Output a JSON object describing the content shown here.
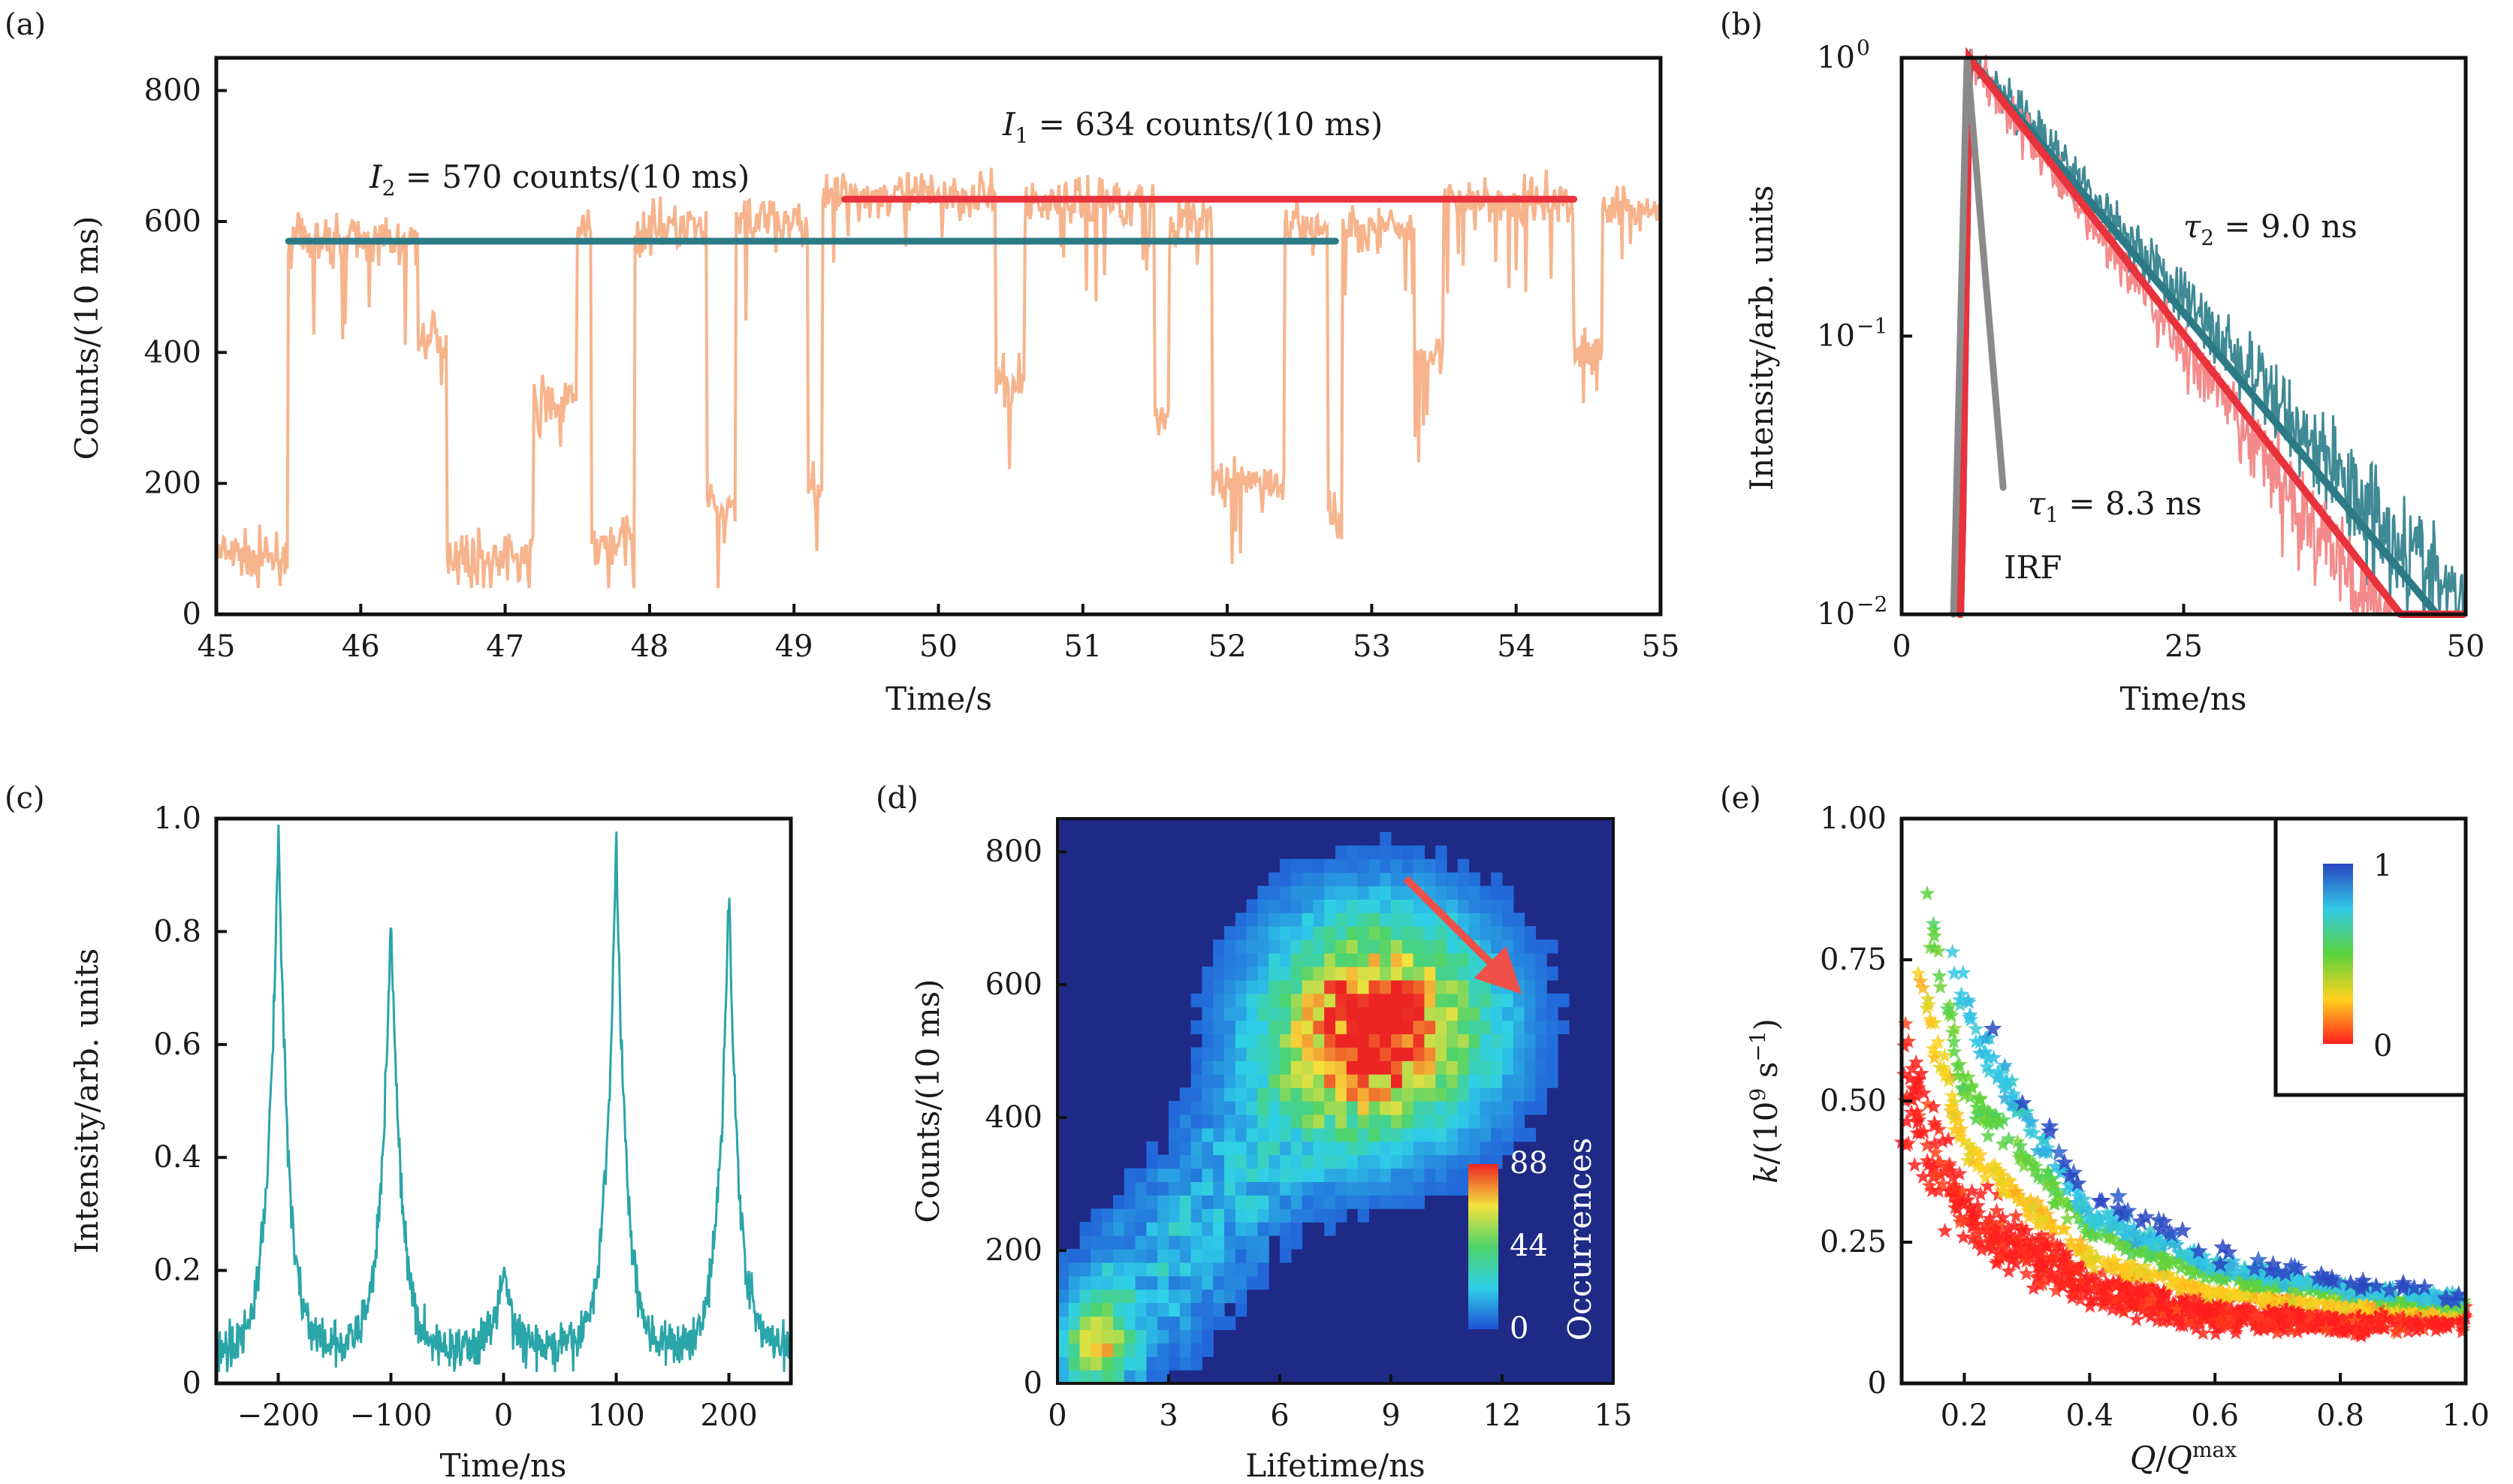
{
  "colors": {
    "trace_a": "#f7b48c",
    "red": "#e8323c",
    "teal": "#2c7a86",
    "teal_c": "#2aa5a8",
    "irf": "#8a8a8a",
    "trace_b_red": "#f58a8a",
    "trace_b_teal": "#3f8a95",
    "heat_bg": "#1e2a86"
  },
  "chart_data": [
    {
      "panel": "(a)",
      "type": "line",
      "xlabel": "Time/s",
      "ylabel": "Counts/(10 ms)",
      "xlim": [
        45,
        55
      ],
      "ylim": [
        0,
        850
      ],
      "xticks": [
        "45",
        "46",
        "47",
        "48",
        "49",
        "50",
        "51",
        "52",
        "53",
        "54",
        "55"
      ],
      "yticks": [
        "0",
        "200",
        "400",
        "600",
        "800"
      ],
      "trace_states": [
        {
          "t": [
            45.0,
            45.5
          ],
          "level": 90
        },
        {
          "t": [
            45.5,
            46.4
          ],
          "level": 570
        },
        {
          "t": [
            46.4,
            46.6
          ],
          "level": 420
        },
        {
          "t": [
            46.6,
            47.2
          ],
          "level": 90
        },
        {
          "t": [
            47.2,
            47.5
          ],
          "level": 320
        },
        {
          "t": [
            47.5,
            47.6
          ],
          "level": 590
        },
        {
          "t": [
            47.6,
            47.9
          ],
          "level": 110
        },
        {
          "t": [
            47.9,
            48.4
          ],
          "level": 590
        },
        {
          "t": [
            48.4,
            48.6
          ],
          "level": 160
        },
        {
          "t": [
            48.6,
            49.1
          ],
          "level": 600
        },
        {
          "t": [
            49.1,
            49.2
          ],
          "level": 200
        },
        {
          "t": [
            49.2,
            50.4
          ],
          "level": 640
        },
        {
          "t": [
            50.4,
            50.6
          ],
          "level": 350
        },
        {
          "t": [
            50.6,
            51.5
          ],
          "level": 630
        },
        {
          "t": [
            51.5,
            51.6
          ],
          "level": 300
        },
        {
          "t": [
            51.6,
            51.9
          ],
          "level": 600
        },
        {
          "t": [
            51.9,
            52.4
          ],
          "level": 200
        },
        {
          "t": [
            52.4,
            52.7
          ],
          "level": 590
        },
        {
          "t": [
            52.7,
            52.8
          ],
          "level": 150
        },
        {
          "t": [
            52.8,
            53.3
          ],
          "level": 590
        },
        {
          "t": [
            53.3,
            53.5
          ],
          "level": 400
        },
        {
          "t": [
            53.5,
            54.4
          ],
          "level": 630
        },
        {
          "t": [
            54.4,
            54.6
          ],
          "level": 400
        },
        {
          "t": [
            54.6,
            55.0
          ],
          "level": 620
        }
      ],
      "lines": [
        {
          "label_var": "I",
          "label_sub": "1",
          "label_value": " = 634 counts/(10 ms)",
          "x": [
            49.35,
            54.4
          ],
          "y": 634,
          "color": "red"
        },
        {
          "label_var": "I",
          "label_sub": "2",
          "label_value": " = 570 counts/(10 ms)",
          "x": [
            45.5,
            52.75
          ],
          "y": 570,
          "color": "teal"
        }
      ]
    },
    {
      "panel": "(b)",
      "type": "line",
      "xlabel": "Time/ns",
      "ylabel": "Intensity/arb. units",
      "xlim": [
        0,
        50
      ],
      "ylim_log10": [
        -2,
        0
      ],
      "xticks": [
        "0",
        "25",
        "50"
      ],
      "yticks": [
        {
          "base": "10",
          "exp": "0"
        },
        {
          "base": "10",
          "exp": "−1"
        },
        {
          "base": "10",
          "exp": "−2"
        }
      ],
      "rise_ns": 5.2,
      "peak_ns": 6.0,
      "series": [
        {
          "name_var": "τ",
          "name_sub": "2",
          "name_value": " = 9.0 ns",
          "tau": 9.0,
          "color": "teal"
        },
        {
          "name_var": "τ",
          "name_sub": "1",
          "name_value": " = 8.3 ns",
          "tau": 8.3,
          "color": "red"
        },
        {
          "name": "IRF",
          "tau": 0.9,
          "color": "irf"
        }
      ]
    },
    {
      "panel": "(c)",
      "type": "line",
      "xlabel": "Time/ns",
      "ylabel": "Intensity/arb. units",
      "xlim": [
        -255,
        255
      ],
      "ylim": [
        0,
        1.0
      ],
      "xticks": [
        "−200",
        "−100",
        "0",
        "100",
        "200"
      ],
      "yticks": [
        "0",
        "0.2",
        "0.4",
        "0.6",
        "0.8",
        "1.0"
      ],
      "peaks": [
        {
          "x": -200,
          "height": 1.0
        },
        {
          "x": -100,
          "height": 0.85
        },
        {
          "x": 0,
          "height": 0.2
        },
        {
          "x": 100,
          "height": 0.97
        },
        {
          "x": 200,
          "height": 0.88
        }
      ],
      "baseline": 0.06
    },
    {
      "panel": "(d)",
      "type": "heatmap",
      "xlabel": "Lifetime/ns",
      "ylabel": "Counts/(10 ms)",
      "xlim": [
        0,
        15
      ],
      "ylim": [
        0,
        850
      ],
      "xticks": [
        "0",
        "3",
        "6",
        "9",
        "12",
        "15"
      ],
      "yticks": [
        "0",
        "200",
        "400",
        "600",
        "800"
      ],
      "colorbar": {
        "label": "Occurrences",
        "ticks": [
          "88",
          "44",
          "0"
        ],
        "max": 88
      },
      "clusters": [
        {
          "lifetime": 8.7,
          "counts": 540,
          "peak": 88,
          "spread_lifetime": 2.0,
          "spread_counts": 110
        },
        {
          "lifetime": 1.1,
          "counts": 70,
          "peak": 50,
          "spread_lifetime": 0.6,
          "spread_counts": 45
        }
      ],
      "arrow": {
        "from": [
          9.4,
          760
        ],
        "to": [
          12.1,
          610
        ]
      }
    },
    {
      "panel": "(e)",
      "type": "scatter",
      "xlabel_var": "Q",
      "xlabel_sep": "/",
      "xlabel_sup": "max",
      "ylabel_var": "k",
      "ylabel_unit_open": "/(10",
      "ylabel_exp": "9",
      "ylabel_unit_mid": " s",
      "ylabel_exp2": "−1",
      "ylabel_unit_close": ")",
      "xlim": [
        0.1,
        1.0
      ],
      "ylim": [
        0,
        1.0
      ],
      "xticks": [
        "0.2",
        "0.4",
        "0.6",
        "0.8",
        "1.0"
      ],
      "yticks": [
        "0",
        "0.25",
        "0.50",
        "0.75",
        "1.00"
      ],
      "colorbar": {
        "ticks": [
          "1",
          "0"
        ]
      },
      "marker": "star",
      "bands": [
        {
          "color_value": 0.0,
          "k_at": [
            [
              0.1,
              0.55
            ],
            [
              0.2,
              0.3
            ],
            [
              0.4,
              0.17
            ],
            [
              0.6,
              0.12
            ],
            [
              0.8,
              0.11
            ],
            [
              1.0,
              0.12
            ]
          ]
        },
        {
          "color_value": 0.25,
          "k_at": [
            [
              0.12,
              0.75
            ],
            [
              0.2,
              0.42
            ],
            [
              0.4,
              0.22
            ],
            [
              0.6,
              0.16
            ],
            [
              0.8,
              0.14
            ],
            [
              1.0,
              0.13
            ]
          ]
        },
        {
          "color_value": 0.5,
          "k_at": [
            [
              0.14,
              0.85
            ],
            [
              0.2,
              0.52
            ],
            [
              0.4,
              0.27
            ],
            [
              0.6,
              0.19
            ],
            [
              0.8,
              0.16
            ],
            [
              1.0,
              0.14
            ]
          ]
        },
        {
          "color_value": 0.75,
          "k_at": [
            [
              0.18,
              0.75
            ],
            [
              0.25,
              0.55
            ],
            [
              0.4,
              0.3
            ],
            [
              0.6,
              0.21
            ],
            [
              0.8,
              0.17
            ],
            [
              1.0,
              0.15
            ]
          ]
        },
        {
          "color_value": 1.0,
          "k_at": [
            [
              0.24,
              0.62
            ],
            [
              0.3,
              0.5
            ],
            [
              0.4,
              0.33
            ],
            [
              0.6,
              0.23
            ],
            [
              0.8,
              0.18
            ],
            [
              1.0,
              0.15
            ]
          ]
        }
      ]
    }
  ]
}
